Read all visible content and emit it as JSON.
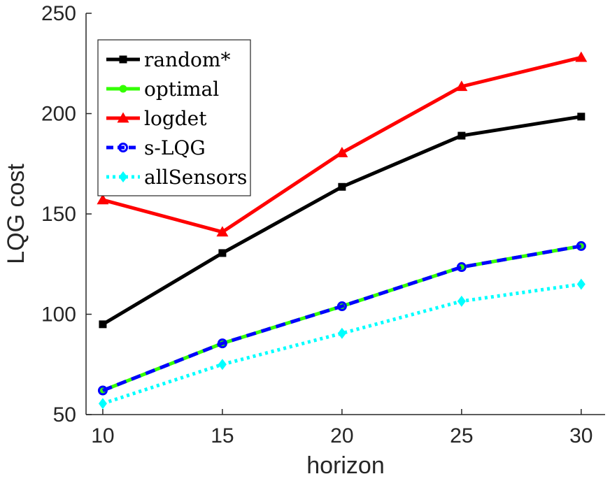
{
  "chart_data": {
    "type": "line",
    "xlabel": "horizon",
    "ylabel": "LQG cost",
    "xlim": [
      9.3,
      31
    ],
    "ylim": [
      50,
      250
    ],
    "xticks": [
      10,
      15,
      20,
      25,
      30
    ],
    "yticks": [
      50,
      100,
      150,
      200,
      250
    ],
    "legend_position": "top-left",
    "x": [
      10,
      15,
      20,
      25,
      30
    ],
    "series": [
      {
        "name": "random*",
        "values": [
          95,
          130.5,
          163.5,
          189,
          198.5
        ],
        "color": "#000000",
        "marker": "square",
        "dash": "solid"
      },
      {
        "name": "optimal",
        "values": [
          62,
          85.5,
          104,
          123.5,
          134
        ],
        "color": "#33ff00",
        "marker": "circle-filled",
        "dash": "solid"
      },
      {
        "name": "logdet",
        "values": [
          157,
          141,
          180.5,
          213.5,
          228
        ],
        "color": "#ff0000",
        "marker": "triangle",
        "dash": "solid"
      },
      {
        "name": "s-LQG",
        "values": [
          62,
          85.5,
          104,
          123.5,
          134
        ],
        "color": "#0000ff",
        "marker": "circle-open",
        "dash": "dashed"
      },
      {
        "name": "allSensors",
        "values": [
          55.5,
          75,
          90.5,
          106.5,
          115
        ],
        "color": "#00ffff",
        "marker": "diamond",
        "dash": "dotted"
      }
    ]
  }
}
